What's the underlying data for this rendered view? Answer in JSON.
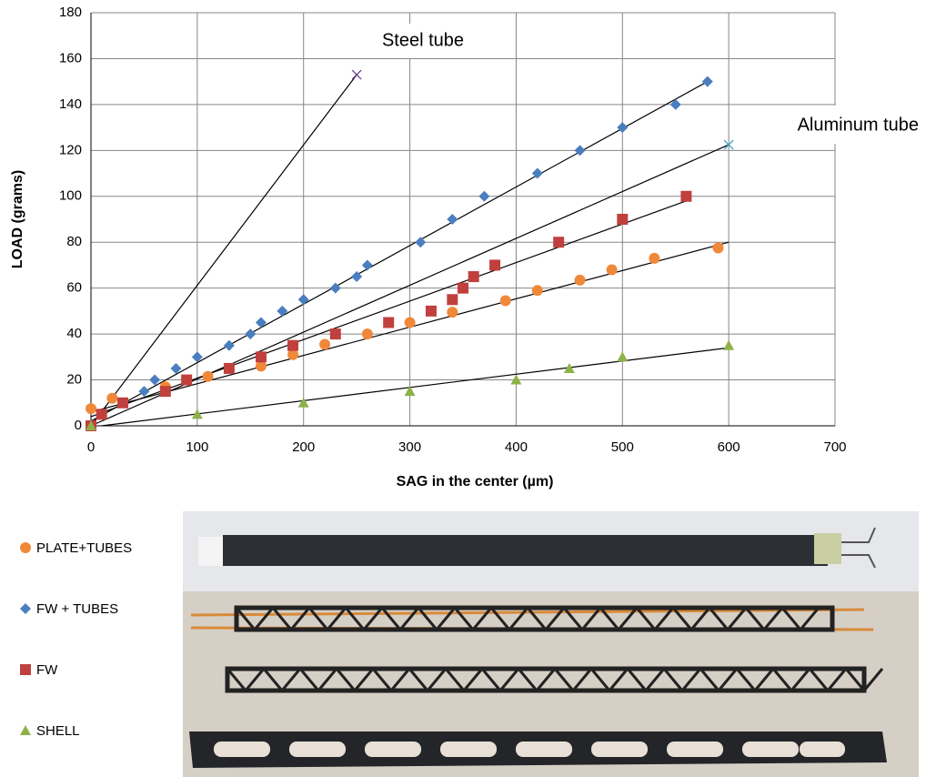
{
  "chart_data": {
    "type": "scatter",
    "x_label": "SAG in the center (µm)",
    "y_label": "LOAD (grams)",
    "xlim": [
      0,
      700
    ],
    "ylim": [
      0,
      180
    ],
    "xticks": [
      0,
      100,
      200,
      300,
      400,
      500,
      600,
      700
    ],
    "yticks": [
      0,
      20,
      40,
      60,
      80,
      100,
      120,
      140,
      160,
      180
    ],
    "grid": true,
    "series": [
      {
        "name": "PLATE+TUBES",
        "color": "#f0883a",
        "marker": "circle",
        "x": [
          0,
          20,
          70,
          110,
          160,
          190,
          220,
          260,
          300,
          340,
          390,
          420,
          460,
          490,
          530,
          590
        ],
        "values": [
          7.5,
          12,
          17,
          21.5,
          26,
          31,
          35.5,
          40,
          45,
          49.5,
          54.5,
          59,
          63.5,
          68,
          73,
          77.5
        ],
        "trend": {
          "x": [
            0,
            600
          ],
          "values": [
            6,
            80
          ]
        }
      },
      {
        "name": "FW + TUBES",
        "color": "#4a7ebf",
        "marker": "diamond",
        "x": [
          0,
          10,
          50,
          60,
          80,
          100,
          130,
          150,
          160,
          180,
          200,
          230,
          250,
          260,
          310,
          340,
          370,
          420,
          460,
          500,
          550,
          580
        ],
        "values": [
          0,
          5,
          15,
          20,
          25,
          30,
          35,
          40,
          45,
          50,
          55,
          60,
          65,
          70,
          80,
          90,
          100,
          110,
          120,
          130,
          140,
          150
        ],
        "trend": {
          "x": [
            0,
            580
          ],
          "values": [
            2,
            150
          ]
        }
      },
      {
        "name": "FW",
        "color": "#c0403e",
        "marker": "square",
        "x": [
          0,
          10,
          30,
          70,
          90,
          130,
          160,
          190,
          230,
          280,
          320,
          340,
          350,
          360,
          380,
          440,
          500,
          560
        ],
        "values": [
          0,
          5,
          10,
          15,
          20,
          25,
          30,
          35,
          40,
          45,
          50,
          55,
          60,
          65,
          70,
          80,
          90,
          100
        ],
        "trend": {
          "x": [
            0,
            560
          ],
          "values": [
            4,
            98
          ]
        }
      },
      {
        "name": "SHELL",
        "color": "#8db24a",
        "marker": "triangle",
        "x": [
          0,
          100,
          200,
          300,
          400,
          450,
          500,
          600
        ],
        "values": [
          0,
          5,
          10,
          15,
          20,
          25,
          30,
          35
        ],
        "trend": {
          "x": [
            10,
            600
          ],
          "values": [
            0,
            34
          ]
        }
      }
    ],
    "references": [
      {
        "label": "Steel tube",
        "color": "#6a3d8f",
        "x": [
          250
        ],
        "values": [
          153
        ],
        "trend": {
          "x": [
            0,
            250
          ],
          "values": [
            0,
            153
          ]
        }
      },
      {
        "label": "Aluminum tube",
        "color": "#3aa0c8",
        "x": [
          600
        ],
        "values": [
          122.5
        ],
        "trend": {
          "x": [
            0,
            600
          ],
          "values": [
            0,
            122.5
          ]
        }
      }
    ]
  }
}
